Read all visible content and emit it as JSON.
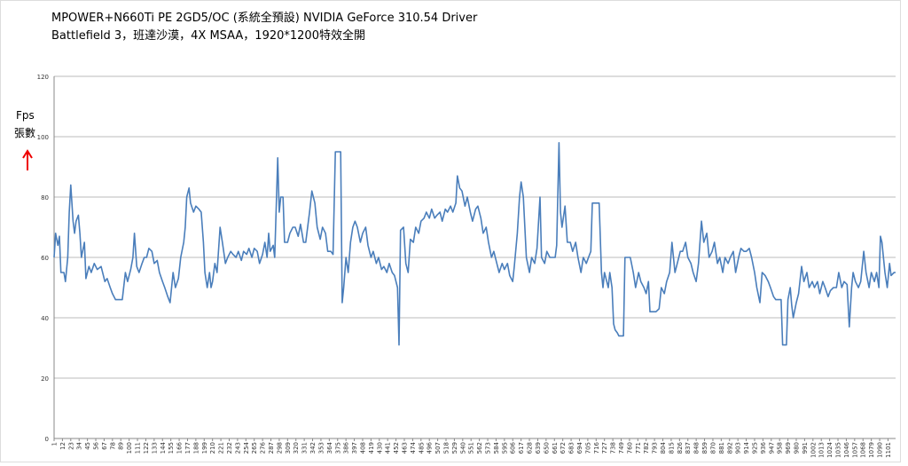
{
  "chart_data": {
    "type": "line",
    "title": "MPOWER+N660Ti PE 2GD5/OC (系統全預設) NVIDIA GeForce 310.54 Driver",
    "subtitle": "Battlefield 3，班達沙漠，4X MSAA，1920*1200特效全開",
    "ylabel_lines": [
      "Fps",
      "張數"
    ],
    "color": "#4a7ebb",
    "grid": true,
    "xlim": [
      1,
      1111
    ],
    "ylim": [
      0,
      120
    ],
    "yticks": [
      0,
      20,
      40,
      60,
      80,
      100,
      120
    ],
    "xticks": [
      1,
      12,
      23,
      34,
      45,
      56,
      67,
      78,
      89,
      100,
      111,
      122,
      133,
      144,
      155,
      166,
      177,
      188,
      199,
      210,
      221,
      232,
      243,
      254,
      265,
      276,
      287,
      298,
      309,
      320,
      331,
      342,
      353,
      364,
      375,
      386,
      397,
      408,
      419,
      430,
      441,
      452,
      463,
      474,
      485,
      496,
      507,
      518,
      529,
      540,
      551,
      562,
      573,
      584,
      595,
      606,
      617,
      628,
      639,
      650,
      661,
      672,
      683,
      694,
      705,
      716,
      727,
      738,
      749,
      760,
      771,
      782,
      793,
      804,
      815,
      826,
      837,
      848,
      859,
      870,
      881,
      892,
      903,
      914,
      925,
      936,
      947,
      958,
      969,
      980,
      991,
      1002,
      1013,
      1024,
      1035,
      1046,
      1057,
      1068,
      1079,
      1090,
      1101
    ],
    "x": [
      1,
      3,
      6,
      8,
      10,
      14,
      16,
      19,
      21,
      23,
      26,
      28,
      30,
      33,
      35,
      37,
      41,
      43,
      47,
      50,
      54,
      58,
      63,
      68,
      71,
      75,
      78,
      82,
      88,
      91,
      95,
      98,
      102,
      105,
      107,
      110,
      113,
      117,
      120,
      123,
      126,
      130,
      133,
      137,
      140,
      144,
      147,
      151,
      154,
      158,
      161,
      165,
      168,
      172,
      174,
      176,
      179,
      181,
      185,
      188,
      192,
      195,
      198,
      200,
      203,
      206,
      208,
      210,
      213,
      216,
      220,
      223,
      227,
      230,
      234,
      237,
      241,
      244,
      248,
      251,
      255,
      258,
      262,
      265,
      269,
      272,
      276,
      279,
      282,
      284,
      286,
      290,
      292,
      296,
      298,
      300,
      303,
      305,
      309,
      312,
      316,
      319,
      323,
      326,
      330,
      333,
      338,
      341,
      345,
      348,
      352,
      355,
      359,
      362,
      366,
      369,
      372,
      375,
      379,
      381,
      383,
      386,
      389,
      392,
      395,
      398,
      401,
      405,
      408,
      412,
      415,
      419,
      422,
      426,
      429,
      433,
      436,
      440,
      443,
      447,
      450,
      454,
      456,
      458,
      462,
      465,
      468,
      471,
      475,
      478,
      482,
      485,
      489,
      492,
      496,
      499,
      503,
      506,
      510,
      513,
      517,
      520,
      524,
      527,
      531,
      533,
      536,
      539,
      543,
      546,
      550,
      553,
      557,
      560,
      564,
      567,
      571,
      574,
      578,
      581,
      585,
      588,
      592,
      595,
      599,
      602,
      606,
      608,
      612,
      615,
      617,
      620,
      622,
      624,
      628,
      631,
      635,
      638,
      642,
      644,
      648,
      651,
      655,
      658,
      662,
      664,
      667,
      669,
      671,
      675,
      678,
      682,
      685,
      689,
      692,
      696,
      699,
      703,
      706,
      709,
      711,
      716,
      720,
      723,
      725,
      727,
      730,
      732,
      734,
      737,
      739,
      741,
      744,
      746,
      750,
      752,
      754,
      758,
      761,
      765,
      768,
      772,
      775,
      779,
      782,
      785,
      787,
      790,
      795,
      799,
      802,
      806,
      809,
      813,
      816,
      820,
      823,
      827,
      830,
      834,
      837,
      841,
      844,
      848,
      851,
      855,
      858,
      862,
      865,
      869,
      872,
      876,
      879,
      883,
      886,
      890,
      893,
      897,
      900,
      904,
      907,
      911,
      914,
      918,
      921,
      925,
      928,
      932,
      935,
      939,
      943,
      946,
      950,
      953,
      957,
      960,
      962,
      967,
      969,
      972,
      974,
      976,
      980,
      983,
      987,
      990,
      994,
      997,
      1001,
      1004,
      1008,
      1011,
      1015,
      1018,
      1022,
      1025,
      1029,
      1033,
      1036,
      1040,
      1043,
      1047,
      1050,
      1053,
      1055,
      1058,
      1062,
      1065,
      1069,
      1072,
      1076,
      1079,
      1083,
      1086,
      1089,
      1091,
      1093,
      1097,
      1100,
      1103,
      1105,
      1109,
      1111
    ],
    "values": [
      60,
      68,
      64,
      67,
      55,
      55,
      52,
      60,
      75,
      84,
      72,
      68,
      72,
      74,
      68,
      60,
      65,
      53,
      57,
      55,
      58,
      56,
      57,
      52,
      53,
      50,
      48,
      46,
      46,
      46,
      55,
      52,
      56,
      60,
      68,
      57,
      55,
      58,
      60,
      60,
      63,
      62,
      58,
      59,
      55,
      52,
      50,
      47,
      45,
      55,
      50,
      53,
      60,
      65,
      70,
      80,
      83,
      78,
      75,
      77,
      76,
      75,
      65,
      55,
      50,
      55,
      50,
      52,
      58,
      55,
      70,
      65,
      58,
      60,
      62,
      61,
      60,
      62,
      59,
      62,
      61,
      63,
      60,
      63,
      62,
      58,
      61,
      65,
      60,
      68,
      62,
      64,
      60,
      93,
      75,
      80,
      80,
      65,
      65,
      68,
      70,
      70,
      67,
      71,
      65,
      65,
      75,
      82,
      78,
      70,
      66,
      70,
      68,
      62,
      62,
      61,
      95,
      95,
      95,
      45,
      50,
      60,
      55,
      65,
      70,
      72,
      70,
      65,
      68,
      70,
      64,
      60,
      62,
      58,
      60,
      56,
      57,
      55,
      58,
      55,
      54,
      50,
      31,
      69,
      70,
      58,
      55,
      66,
      65,
      70,
      68,
      72,
      73,
      75,
      73,
      76,
      73,
      74,
      75,
      72,
      76,
      75,
      77,
      75,
      78,
      87,
      83,
      82,
      77,
      80,
      75,
      72,
      76,
      77,
      73,
      68,
      70,
      65,
      60,
      62,
      58,
      55,
      58,
      56,
      58,
      54,
      52,
      57,
      68,
      80,
      85,
      80,
      70,
      60,
      55,
      60,
      58,
      63,
      80,
      60,
      58,
      62,
      60,
      60,
      60,
      64,
      98,
      75,
      70,
      77,
      65,
      65,
      62,
      65,
      60,
      55,
      60,
      58,
      60,
      62,
      78,
      78,
      78,
      55,
      50,
      55,
      52,
      50,
      55,
      50,
      38,
      36,
      35,
      34,
      34,
      34,
      60,
      60,
      60,
      55,
      50,
      55,
      52,
      50,
      48,
      52,
      42,
      42,
      42,
      43,
      50,
      48,
      52,
      55,
      65,
      55,
      58,
      62,
      62,
      65,
      60,
      58,
      55,
      52,
      58,
      72,
      65,
      68,
      60,
      62,
      65,
      58,
      60,
      55,
      60,
      58,
      60,
      62,
      55,
      60,
      63,
      62,
      62,
      63,
      60,
      55,
      50,
      45,
      55,
      54,
      52,
      50,
      47,
      46,
      46,
      46,
      31,
      31,
      46,
      50,
      44,
      40,
      45,
      48,
      57,
      52,
      55,
      50,
      52,
      50,
      52,
      48,
      52,
      50,
      47,
      49,
      50,
      50,
      55,
      50,
      52,
      51,
      37,
      50,
      55,
      52,
      50,
      52,
      62,
      55,
      50,
      55,
      52,
      55,
      50,
      67,
      65,
      55,
      50,
      58,
      54,
      55,
      55
    ]
  }
}
